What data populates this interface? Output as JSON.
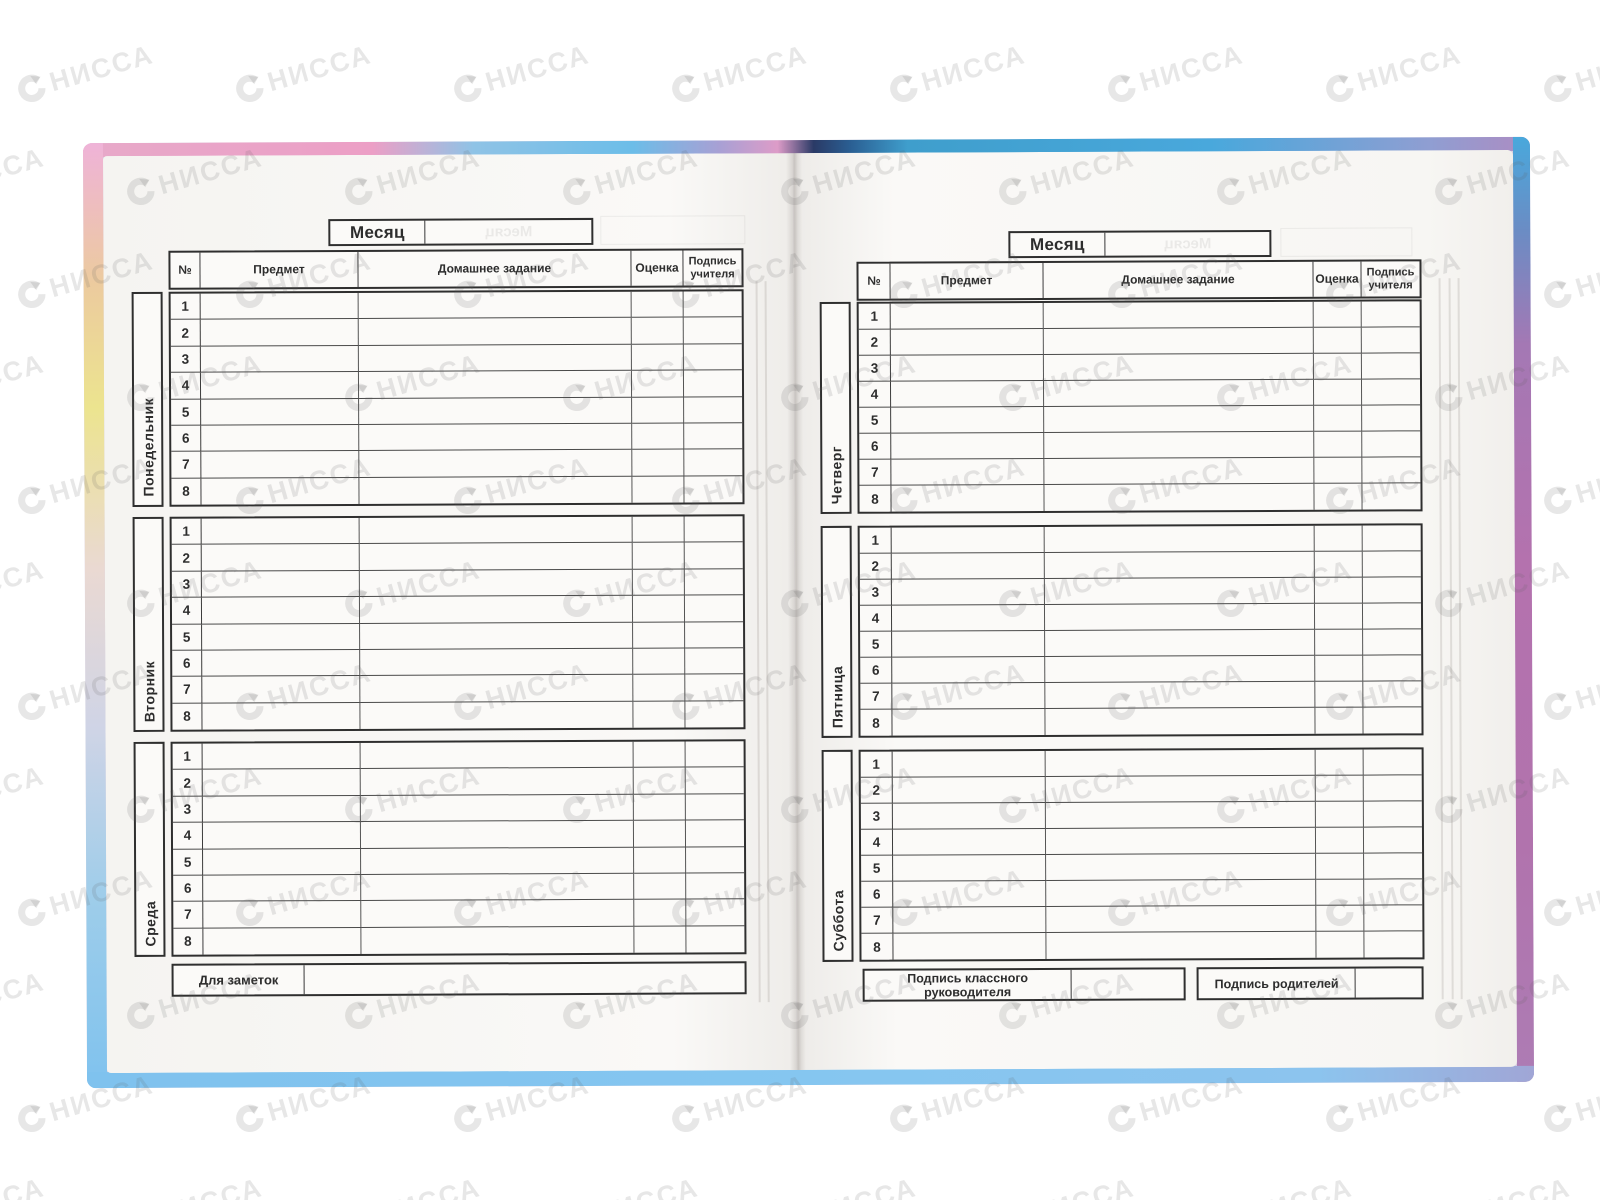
{
  "watermark": {
    "text": "НИССА",
    "logo": "swirl-logo",
    "color_hint": "#e0e0e0"
  },
  "cover_colors": {
    "top_pink": "#e8a8c8",
    "spine_navy": "#2a3a66",
    "top_blue": "#49a8dc",
    "left_pink": "#efb3d8",
    "left_yellow": "#ece48f",
    "right_purple": "#b472ae",
    "bottom_blue": "#85c6f0"
  },
  "paper": {
    "background": "#f8f7f4",
    "ink": "#2d2d2d"
  },
  "pages": {
    "left": {
      "month_label": "Месяц",
      "columns": {
        "num": "№",
        "subject": "Предмет",
        "homework": "Домашнее задание",
        "grade": "Оценка",
        "teacher_sign": "Подпись учителя"
      },
      "lesson_numbers": [
        "1",
        "2",
        "3",
        "4",
        "5",
        "6",
        "7",
        "8"
      ],
      "days": [
        {
          "name": "Понедельник"
        },
        {
          "name": "Вторник"
        },
        {
          "name": "Среда"
        }
      ],
      "notes_label": "Для заметок"
    },
    "right": {
      "month_label": "Месяц",
      "columns": {
        "num": "№",
        "subject": "Предмет",
        "homework": "Домашнее задание",
        "grade": "Оценка",
        "teacher_sign": "Подпись учителя"
      },
      "lesson_numbers": [
        "1",
        "2",
        "3",
        "4",
        "5",
        "6",
        "7",
        "8"
      ],
      "days": [
        {
          "name": "Четверг"
        },
        {
          "name": "Пятница"
        },
        {
          "name": "Суббота"
        }
      ],
      "class_teacher_sign_label": "Подпись классного руководителя",
      "parents_sign_label": "Подпись родителей"
    }
  }
}
